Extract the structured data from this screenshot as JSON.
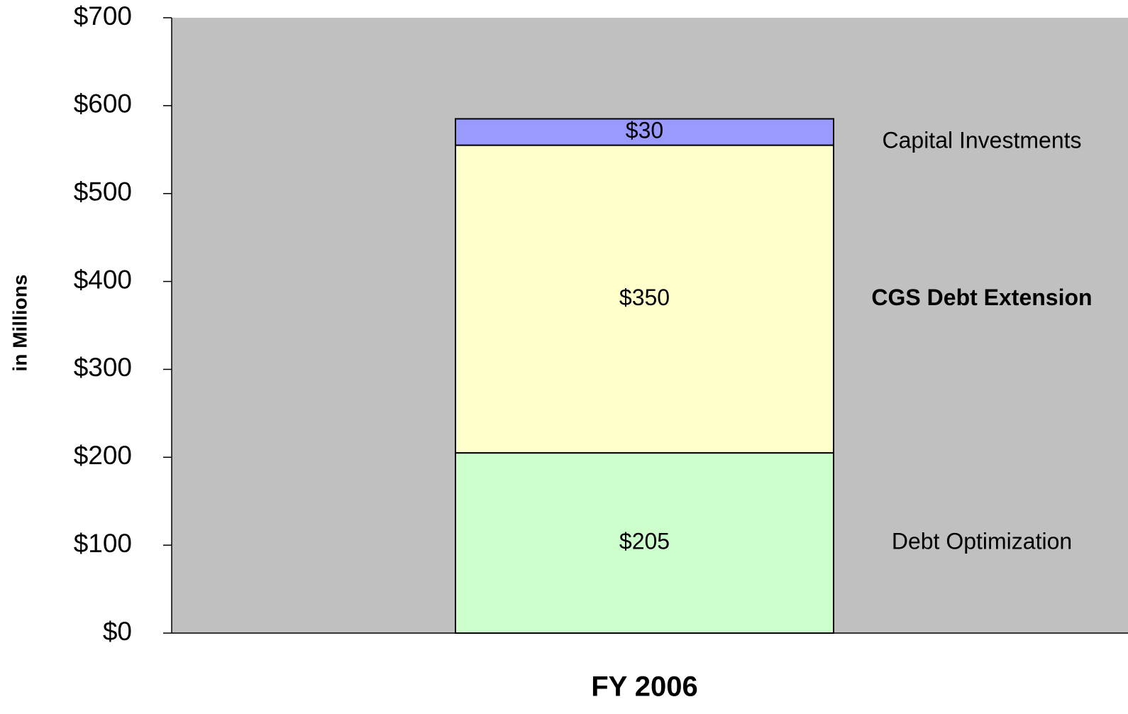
{
  "chart_data": {
    "type": "stacked_bar",
    "y_label": "in Millions",
    "categories": [
      "FY 2006"
    ],
    "series": [
      {
        "name": "Debt Optimization",
        "color": "#ccffcc",
        "values": [
          205
        ],
        "value_labels": [
          "$205"
        ]
      },
      {
        "name": "CGS Debt Extension",
        "color": "#ffffcc",
        "values": [
          350
        ],
        "value_labels": [
          "$350"
        ],
        "bold": true
      },
      {
        "name": "Capital Investments",
        "color": "#9999ff",
        "values": [
          30
        ],
        "value_labels": [
          "$30"
        ]
      }
    ],
    "ylim": [
      0,
      700
    ],
    "yticks": [
      {
        "value": 0,
        "label": "$0"
      },
      {
        "value": 100,
        "label": "$100"
      },
      {
        "value": 200,
        "label": "$200"
      },
      {
        "value": 300,
        "label": "$300"
      },
      {
        "value": 400,
        "label": "$400"
      },
      {
        "value": 500,
        "label": "$500"
      },
      {
        "value": 600,
        "label": "$600"
      },
      {
        "value": 700,
        "label": "$700"
      }
    ],
    "plot_background": "#c0c0c0"
  }
}
